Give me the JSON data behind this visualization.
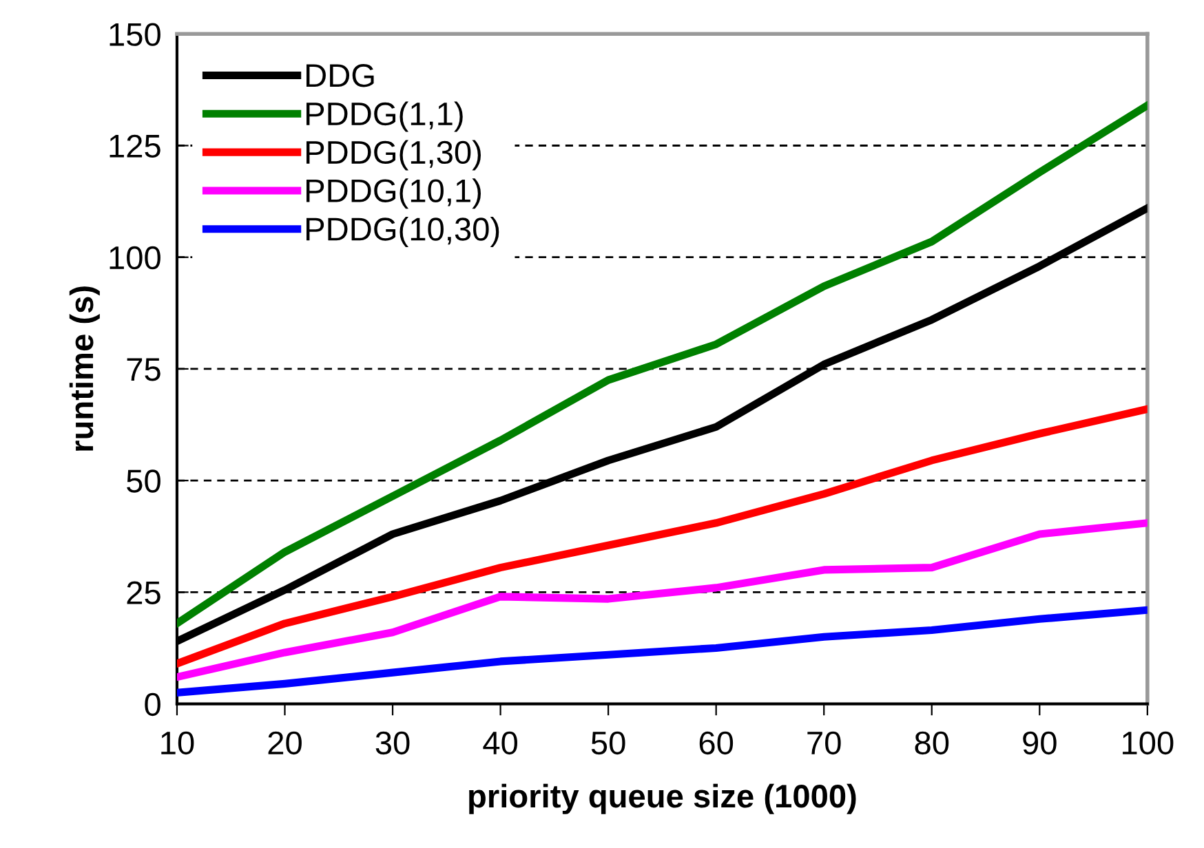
{
  "chart_data": {
    "type": "line",
    "xlabel": "priority queue size (1000)",
    "ylabel": "runtime (s)",
    "x": [
      10,
      20,
      30,
      40,
      50,
      60,
      70,
      80,
      90,
      100
    ],
    "series": [
      {
        "name": "DDG",
        "color": "#000000",
        "values": [
          14,
          25.5,
          38,
          45.5,
          54.5,
          62,
          76,
          86,
          98,
          111
        ]
      },
      {
        "name": "PDDG(1,1)",
        "color": "#008000",
        "values": [
          18,
          34,
          46.5,
          59,
          72.5,
          80.5,
          93.5,
          103.5,
          119,
          134
        ]
      },
      {
        "name": "PDDG(1,30)",
        "color": "#ff0000",
        "values": [
          9,
          18,
          24,
          30.5,
          35.5,
          40.5,
          47,
          54.5,
          60.5,
          66
        ]
      },
      {
        "name": "PDDG(10,1)",
        "color": "#ff00ff",
        "values": [
          6,
          11.5,
          16,
          24,
          23.5,
          26,
          30,
          30.5,
          38,
          40.5
        ]
      },
      {
        "name": "PDDG(10,30)",
        "color": "#0000ff",
        "values": [
          2.5,
          4.5,
          7,
          9.5,
          11,
          12.5,
          15,
          16.5,
          19,
          21
        ]
      }
    ],
    "xlim": [
      10,
      100
    ],
    "xticks": [
      10,
      20,
      30,
      40,
      50,
      60,
      70,
      80,
      90,
      100
    ],
    "ylim": [
      0,
      150
    ],
    "yticks": [
      0,
      25,
      50,
      75,
      100,
      125,
      150
    ],
    "grid": "y",
    "legend": "top left",
    "line_style": "solid",
    "marker": "none"
  }
}
